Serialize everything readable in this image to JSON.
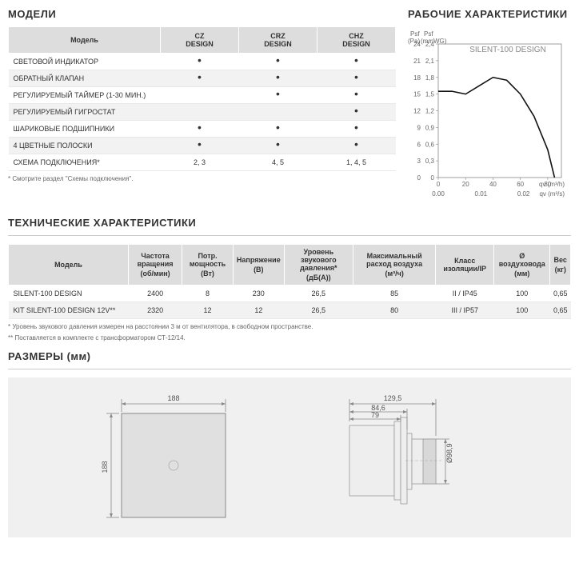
{
  "models_section": {
    "title": "МОДЕЛИ",
    "header_model": "Модель",
    "columns": [
      "CZ\nDESIGN",
      "CRZ\nDESIGN",
      "CHZ\nDESIGN"
    ],
    "rows": [
      {
        "label": "СВЕТОВОЙ ИНДИКАТОР",
        "vals": [
          "•",
          "•",
          "•"
        ]
      },
      {
        "label": "ОБРАТНЫЙ КЛАПАН",
        "vals": [
          "•",
          "•",
          "•"
        ]
      },
      {
        "label": "РЕГУЛИРУЕМЫЙ ТАЙМЕР (1-30 МИН.)",
        "vals": [
          "",
          "•",
          "•"
        ]
      },
      {
        "label": "РЕГУЛИРУЕМЫЙ ГИГРОСТАТ",
        "vals": [
          "",
          "",
          "•"
        ]
      },
      {
        "label": "ШАРИКОВЫЕ ПОДШИПНИКИ",
        "vals": [
          "•",
          "•",
          "•"
        ]
      },
      {
        "label": "4 ЦВЕТНЫЕ ПОЛОСКИ",
        "vals": [
          "•",
          "•",
          "•"
        ]
      },
      {
        "label": "СХЕМА ПОДКЛЮЧЕНИЯ*",
        "vals": [
          "2, 3",
          "4, 5",
          "1, 4, 5"
        ]
      }
    ],
    "footnote": "* Смотрите раздел \"Схемы подключения\"."
  },
  "chart": {
    "title": "РАБОЧИЕ ХАРАКТЕРИСТИКИ",
    "label_pa": "Psf\n(Pa)",
    "label_mmwg": "Psf\n(mmWG)",
    "series_title": "SILENT-100 DESIGN",
    "y_ticks_pa": [
      "0",
      "3",
      "6",
      "9",
      "12",
      "15",
      "18",
      "21",
      "24"
    ],
    "y_ticks_mmwg": [
      "0",
      "0,3",
      "0,6",
      "0,9",
      "1,2",
      "1,5",
      "1,8",
      "2,1",
      "2,4"
    ],
    "x_ticks_top": [
      "0",
      "20",
      "40",
      "60",
      "80"
    ],
    "x_ticks_bot": [
      "0.00",
      "0.01",
      "0.02"
    ],
    "x_label_top": "qv (m³/h)",
    "x_label_bot": "qv (m³/s)",
    "curve": [
      [
        0,
        15.5
      ],
      [
        10,
        15.5
      ],
      [
        20,
        15
      ],
      [
        30,
        16.5
      ],
      [
        40,
        18
      ],
      [
        50,
        17.5
      ],
      [
        60,
        15
      ],
      [
        70,
        11
      ],
      [
        80,
        5
      ],
      [
        85,
        0
      ]
    ],
    "x_range": [
      0,
      90
    ],
    "y_range": [
      0,
      24
    ],
    "curve_color": "#111",
    "grid_color": "#ccc"
  },
  "specs": {
    "title": "ТЕХНИЧЕСКИЕ ХАРАКТЕРИСТИКИ",
    "headers": [
      {
        "label": "Модель",
        "unit": ""
      },
      {
        "label": "Частота вращения",
        "unit": "(об/мин)"
      },
      {
        "label": "Потр. мощность",
        "unit": "(Вт)"
      },
      {
        "label": "Напряжение",
        "unit": "(В)"
      },
      {
        "label": "Уровень звукового давления*",
        "unit": "(дБ(А))"
      },
      {
        "label": "Максимальный расход воздуха",
        "unit": "(м³/ч)"
      },
      {
        "label": "Класс изоляции/IP",
        "unit": ""
      },
      {
        "label": "Ø воздуховода",
        "unit": "(мм)"
      },
      {
        "label": "Вес",
        "unit": "(кг)"
      }
    ],
    "rows": [
      [
        "SILENT-100 DESIGN",
        "2400",
        "8",
        "230",
        "26,5",
        "85",
        "II / IP45",
        "100",
        "0,65"
      ],
      [
        "KIT SILENT-100 DESIGN 12V**",
        "2320",
        "12",
        "12",
        "26,5",
        "80",
        "III / IP57",
        "100",
        "0,65"
      ]
    ],
    "footnote1": "* Уровень звукового давления измерен на расстоянии 3 м от вентилятора, в свободном пространстве.",
    "footnote2": "** Поставляется в комплекте с трансформатором СТ-12/14."
  },
  "dims": {
    "title": "РАЗМЕРЫ (мм)",
    "width": "188",
    "height": "188",
    "side_overall": "129,5",
    "side_mid": "84,6",
    "side_inner": "79",
    "diameter": "Ø98,9"
  }
}
